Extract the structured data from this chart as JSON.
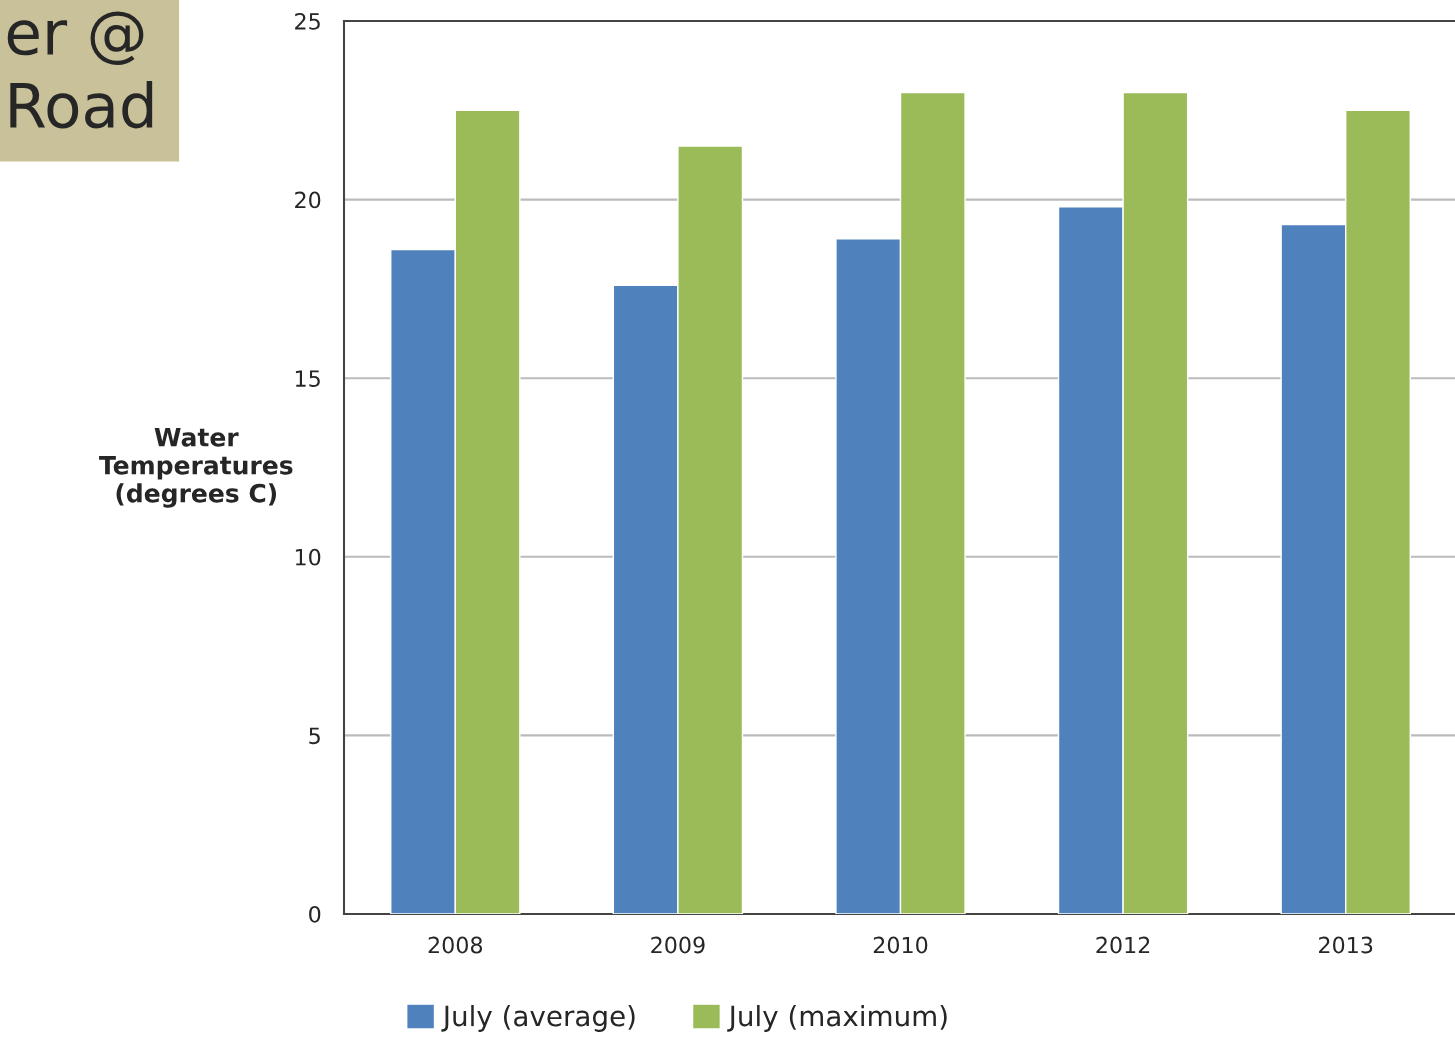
{
  "chart_data": {
    "type": "bar",
    "title": "er @\nRoad",
    "ylabel": "Water\nTemperatures\n(degrees C)",
    "categories": [
      "2008",
      "2009",
      "2010",
      "2012",
      "2013"
    ],
    "series": [
      {
        "name": "July (average)",
        "color": "#4f81bd",
        "values": [
          18.6,
          17.6,
          18.9,
          19.8,
          19.3
        ]
      },
      {
        "name": "July (maximum)",
        "color": "#9bbb59",
        "values": [
          22.5,
          21.5,
          23.0,
          23.0,
          22.5
        ]
      }
    ],
    "ylim": [
      0,
      25
    ],
    "yticks": [
      0,
      5,
      10,
      15,
      20,
      25
    ],
    "grid": "y",
    "legend": "bottom"
  }
}
